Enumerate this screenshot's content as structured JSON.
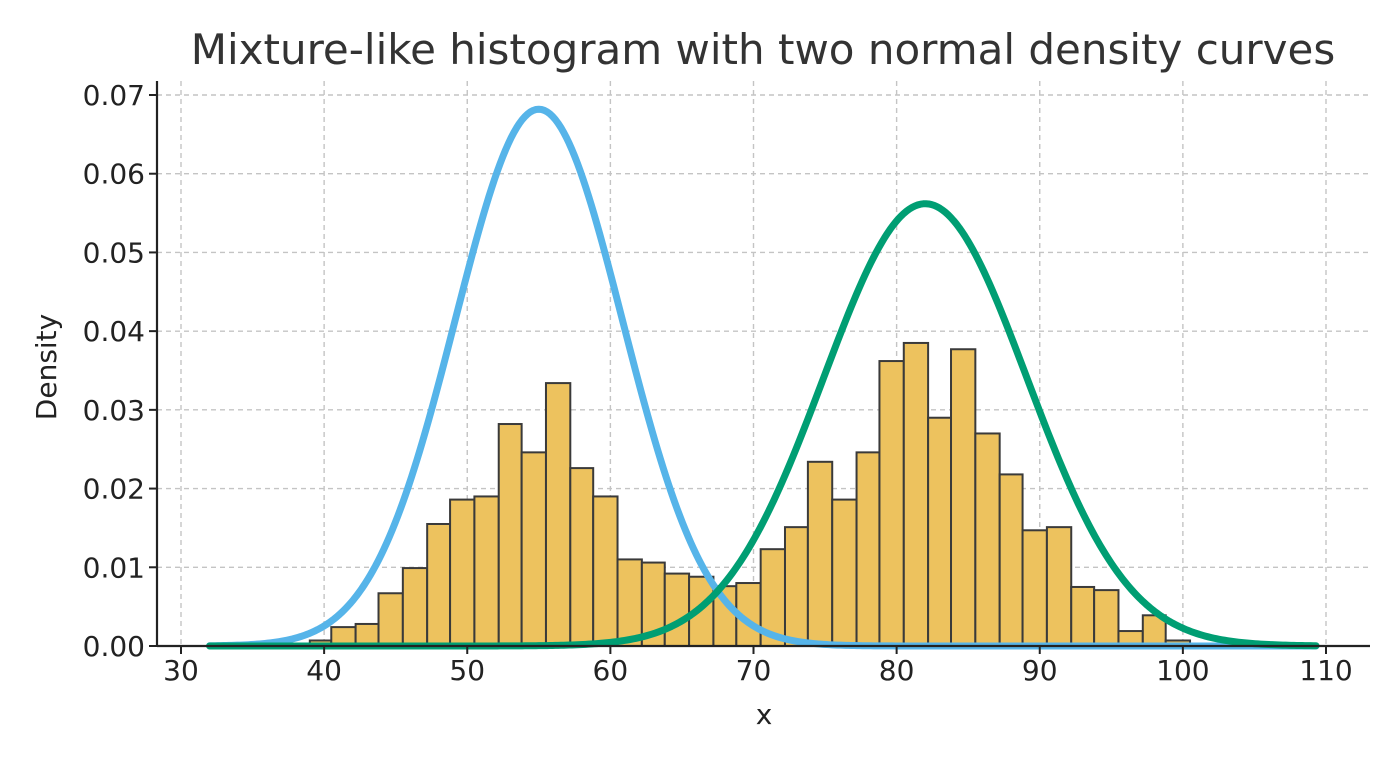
{
  "chart_data": {
    "type": "bar",
    "title": "Mixture-like histogram with two normal density curves",
    "xlabel": "x",
    "ylabel": "Density",
    "xlim": [
      28.3,
      103.1
    ],
    "ylim": [
      0,
      0.0715
    ],
    "xticks": [
      30,
      40,
      50,
      60,
      70,
      80,
      90,
      100,
      110
    ],
    "yticks": [
      0.0,
      0.01,
      0.02,
      0.03,
      0.04,
      0.05,
      0.06,
      0.07
    ],
    "xtick_labels": [
      "30",
      "40",
      "50",
      "60",
      "70",
      "80",
      "90",
      "100",
      "110"
    ],
    "ytick_labels": [
      "0.00",
      "0.01",
      "0.02",
      "0.03",
      "0.04",
      "0.05",
      "0.06",
      "0.07"
    ],
    "grid": true,
    "histogram": {
      "bin_edges": [
        39.0,
        40.5,
        42.2,
        43.8,
        45.5,
        47.2,
        48.8,
        50.5,
        52.2,
        53.8,
        55.5,
        57.2,
        58.8,
        60.5,
        62.2,
        63.8,
        65.5,
        67.2,
        68.8,
        70.5,
        72.2,
        73.8,
        75.5,
        77.2,
        78.8,
        80.5,
        82.2,
        83.8,
        85.5,
        87.2,
        88.8,
        90.5,
        92.2,
        93.8,
        95.5,
        97.2,
        98.8,
        100.5,
        102.2
      ],
      "values": [
        0.0007,
        0.0024,
        0.0028,
        0.0067,
        0.0099,
        0.0155,
        0.0186,
        0.019,
        0.0282,
        0.0246,
        0.0334,
        0.0226,
        0.019,
        0.011,
        0.0106,
        0.0092,
        0.0088,
        0.0076,
        0.008,
        0.0123,
        0.0151,
        0.0234,
        0.0186,
        0.0246,
        0.0362,
        0.0385,
        0.029,
        0.0377,
        0.027,
        0.0218,
        0.0147,
        0.0151,
        0.0075,
        0.0071,
        0.0019,
        0.0039,
        0.0007,
        0.0003
      ],
      "color": "#edc25e"
    },
    "series": [
      {
        "mean": 55.0,
        "sd": 5.85,
        "x_range": [
          32.0,
          109.3
        ],
        "color": "#56b4e9"
      },
      {
        "mean": 82.0,
        "sd": 7.1,
        "x_range": [
          32.0,
          109.3
        ],
        "color": "#009e73"
      }
    ]
  }
}
